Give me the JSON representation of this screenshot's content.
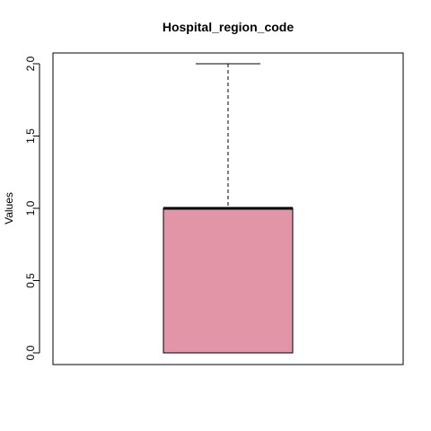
{
  "chart_data": {
    "type": "boxplot",
    "title": "Hospital_region_code",
    "xlabel": "",
    "ylabel": "Values",
    "ylim": [
      -0.08,
      2.08
    ],
    "yticks": [
      0.0,
      0.5,
      1.0,
      1.5,
      2.0
    ],
    "ytick_labels": [
      "0.0",
      "0.5",
      "1.0",
      "1.5",
      "2.0"
    ],
    "box": {
      "whisker_low": 0.0,
      "q1": 0.0,
      "median": 1.0,
      "q3": 1.0,
      "whisker_high": 2.0
    },
    "box_color": "#e295a6",
    "grid": false
  }
}
